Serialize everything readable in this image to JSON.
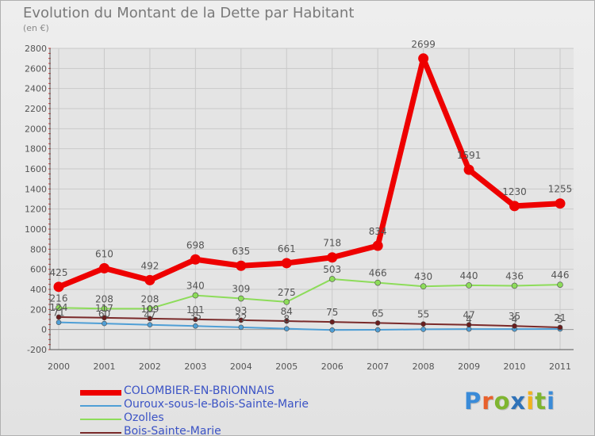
{
  "header": {
    "title": "Evolution du Montant de la Dette par Habitant",
    "unit": "(en €)"
  },
  "logo": {
    "text": "Proxiti",
    "colors": [
      "#3a8bd8",
      "#e8612c",
      "#7fb530",
      "#2f72b8",
      "#f2b21c",
      "#7fb530",
      "#3a8bd8"
    ]
  },
  "chart_data": {
    "type": "line",
    "title": "Evolution du Montant de la Dette par Habitant",
    "subtitle": "(en €)",
    "xlabel": "",
    "ylabel": "",
    "categories": [
      "2000",
      "2001",
      "2002",
      "2003",
      "2004",
      "2005",
      "2006",
      "2007",
      "2008",
      "2009",
      "2010",
      "2011"
    ],
    "ylim": [
      -200,
      2800
    ],
    "yticks": [
      -200,
      0,
      200,
      400,
      600,
      800,
      1000,
      1200,
      1400,
      1600,
      1800,
      2000,
      2200,
      2400,
      2600,
      2800
    ],
    "grid": true,
    "legend_position": "bottom",
    "series": [
      {
        "name": "COLOMBIER-EN-BRIONNAIS",
        "color": "#ee0000",
        "values": [
          425,
          610,
          492,
          698,
          635,
          661,
          718,
          834,
          2699,
          1591,
          1230,
          1255
        ],
        "labels": [
          "425",
          "610",
          "492",
          "698",
          "635",
          "661",
          "718",
          "834",
          "2699",
          "1591",
          "1230",
          "1255"
        ]
      },
      {
        "name": "Ouroux-sous-le-Bois-Sainte-Marie",
        "color": "#4f9fd6",
        "values": [
          71,
          60,
          47,
          35,
          22,
          8,
          -5,
          -3,
          2,
          4,
          4,
          5
        ],
        "labels": [
          "71",
          "60",
          "47",
          "35",
          "22",
          "8",
          "",
          "",
          "",
          "4",
          "4",
          "5"
        ]
      },
      {
        "name": "Ozolles",
        "color": "#8ddc5a",
        "values": [
          216,
          208,
          208,
          340,
          309,
          275,
          503,
          466,
          430,
          440,
          436,
          446
        ],
        "labels": [
          "216",
          "208",
          "208",
          "340",
          "309",
          "275",
          "503",
          "466",
          "430",
          "440",
          "436",
          "446"
        ]
      },
      {
        "name": "Bois-Sainte-Marie",
        "color": "#7a2a2a",
        "values": [
          124,
          117,
          109,
          101,
          93,
          84,
          75,
          65,
          55,
          47,
          35,
          21
        ],
        "labels": [
          "124",
          "117",
          "109",
          "101",
          "93",
          "84",
          "75",
          "65",
          "55",
          "47",
          "35",
          "21"
        ]
      }
    ]
  }
}
